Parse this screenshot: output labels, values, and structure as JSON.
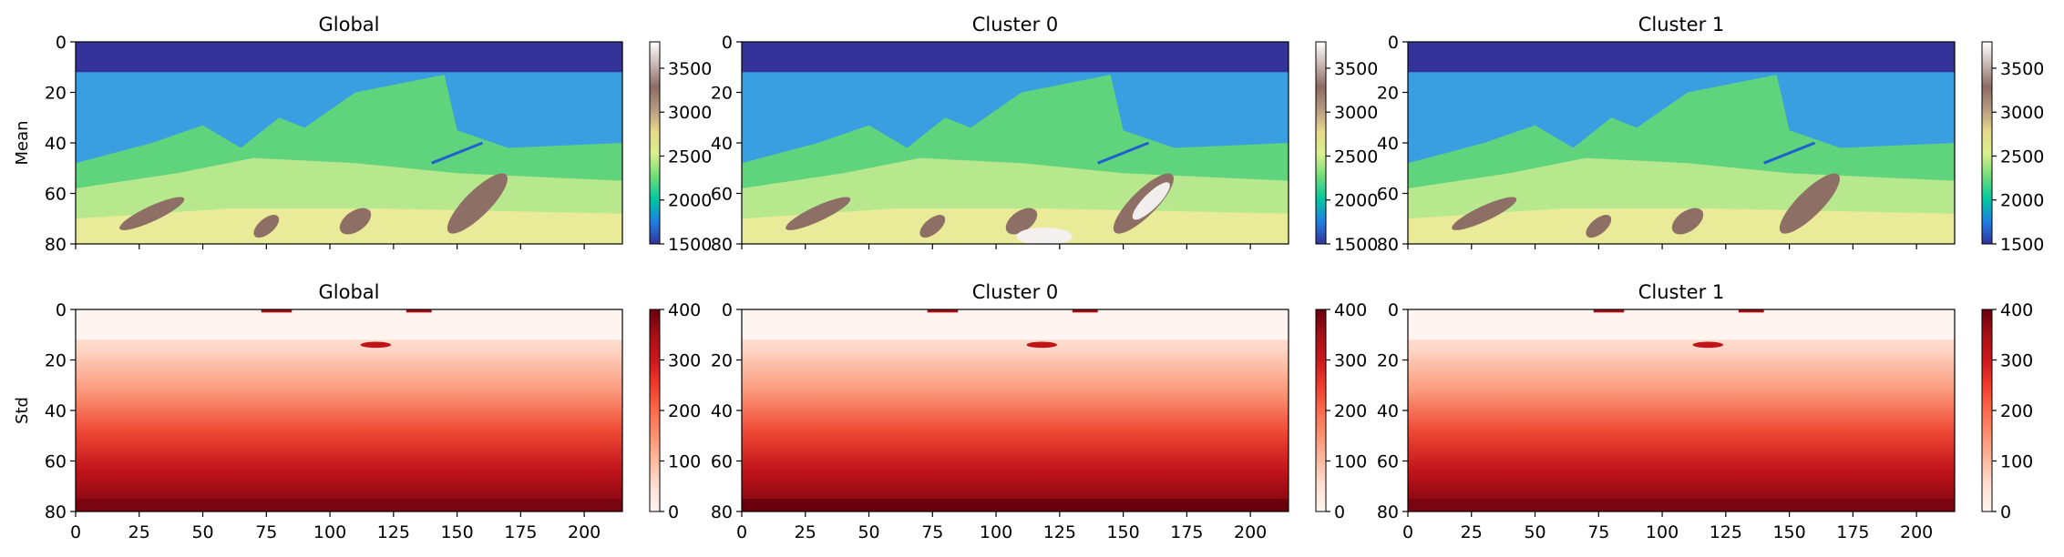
{
  "figure": {
    "row_labels": [
      "Mean",
      "Std"
    ],
    "col_titles": [
      "Global",
      "Cluster 0",
      "Cluster 1"
    ]
  },
  "chart_data": [
    {
      "type": "heatmap",
      "row": 0,
      "col": 0,
      "title": "Global",
      "ylabel": "Mean",
      "xlabel": "",
      "x_ticks": [
        0,
        25,
        50,
        75,
        100,
        125,
        150,
        175,
        200
      ],
      "y_ticks": [
        0,
        20,
        40,
        60,
        80
      ],
      "xlim": [
        0,
        215
      ],
      "ylim": [
        80,
        0
      ],
      "colormap": "terrain",
      "clim": [
        1500,
        3800
      ],
      "colorbar_ticks": [
        1500,
        2000,
        2500,
        3000,
        3500
      ]
    },
    {
      "type": "heatmap",
      "row": 0,
      "col": 1,
      "title": "Cluster 0",
      "ylabel": "",
      "xlabel": "",
      "x_ticks": [
        0,
        25,
        50,
        75,
        100,
        125,
        150,
        175,
        200
      ],
      "y_ticks": [
        0,
        20,
        40,
        60,
        80
      ],
      "xlim": [
        0,
        215
      ],
      "ylim": [
        80,
        0
      ],
      "colormap": "terrain",
      "clim": [
        1500,
        3800
      ],
      "colorbar_ticks": [
        1500,
        2000,
        2500,
        3000,
        3500
      ]
    },
    {
      "type": "heatmap",
      "row": 0,
      "col": 2,
      "title": "Cluster 1",
      "ylabel": "",
      "xlabel": "",
      "x_ticks": [
        0,
        25,
        50,
        75,
        100,
        125,
        150,
        175,
        200
      ],
      "y_ticks": [
        0,
        20,
        40,
        60,
        80
      ],
      "xlim": [
        0,
        215
      ],
      "ylim": [
        80,
        0
      ],
      "colormap": "terrain",
      "clim": [
        1500,
        3800
      ],
      "colorbar_ticks": [
        1500,
        2000,
        2500,
        3000,
        3500
      ]
    },
    {
      "type": "heatmap",
      "row": 1,
      "col": 0,
      "title": "Global",
      "ylabel": "Std",
      "xlabel": "",
      "x_ticks": [
        0,
        25,
        50,
        75,
        100,
        125,
        150,
        175,
        200
      ],
      "y_ticks": [
        0,
        20,
        40,
        60,
        80
      ],
      "xlim": [
        0,
        215
      ],
      "ylim": [
        80,
        0
      ],
      "colormap": "Reds",
      "clim": [
        0,
        400
      ],
      "colorbar_ticks": [
        0,
        100,
        200,
        300,
        400
      ]
    },
    {
      "type": "heatmap",
      "row": 1,
      "col": 1,
      "title": "Cluster 0",
      "ylabel": "",
      "xlabel": "",
      "x_ticks": [
        0,
        25,
        50,
        75,
        100,
        125,
        150,
        175,
        200
      ],
      "y_ticks": [
        0,
        20,
        40,
        60,
        80
      ],
      "xlim": [
        0,
        215
      ],
      "ylim": [
        80,
        0
      ],
      "colormap": "Reds",
      "clim": [
        0,
        400
      ],
      "colorbar_ticks": [
        0,
        100,
        200,
        300,
        400
      ]
    },
    {
      "type": "heatmap",
      "row": 1,
      "col": 2,
      "title": "Cluster 1",
      "ylabel": "",
      "xlabel": "",
      "x_ticks": [
        0,
        25,
        50,
        75,
        100,
        125,
        150,
        175,
        200
      ],
      "y_ticks": [
        0,
        20,
        40,
        60,
        80
      ],
      "xlim": [
        0,
        215
      ],
      "ylim": [
        80,
        0
      ],
      "colormap": "Reds",
      "clim": [
        0,
        400
      ],
      "colorbar_ticks": [
        0,
        100,
        200,
        300,
        400
      ]
    }
  ],
  "colors": {
    "terrain": [
      "#333399",
      "#1f7fe3",
      "#00c8a0",
      "#6fdc78",
      "#d8f08c",
      "#e6d98a",
      "#b89a80",
      "#8c6a62",
      "#c9b8b4",
      "#ffffff"
    ],
    "reds": [
      "#fff5f0",
      "#fee0d2",
      "#fcbba1",
      "#fc9272",
      "#fb6a4a",
      "#ef3b2c",
      "#cb181d",
      "#a50f15",
      "#67000d"
    ]
  }
}
